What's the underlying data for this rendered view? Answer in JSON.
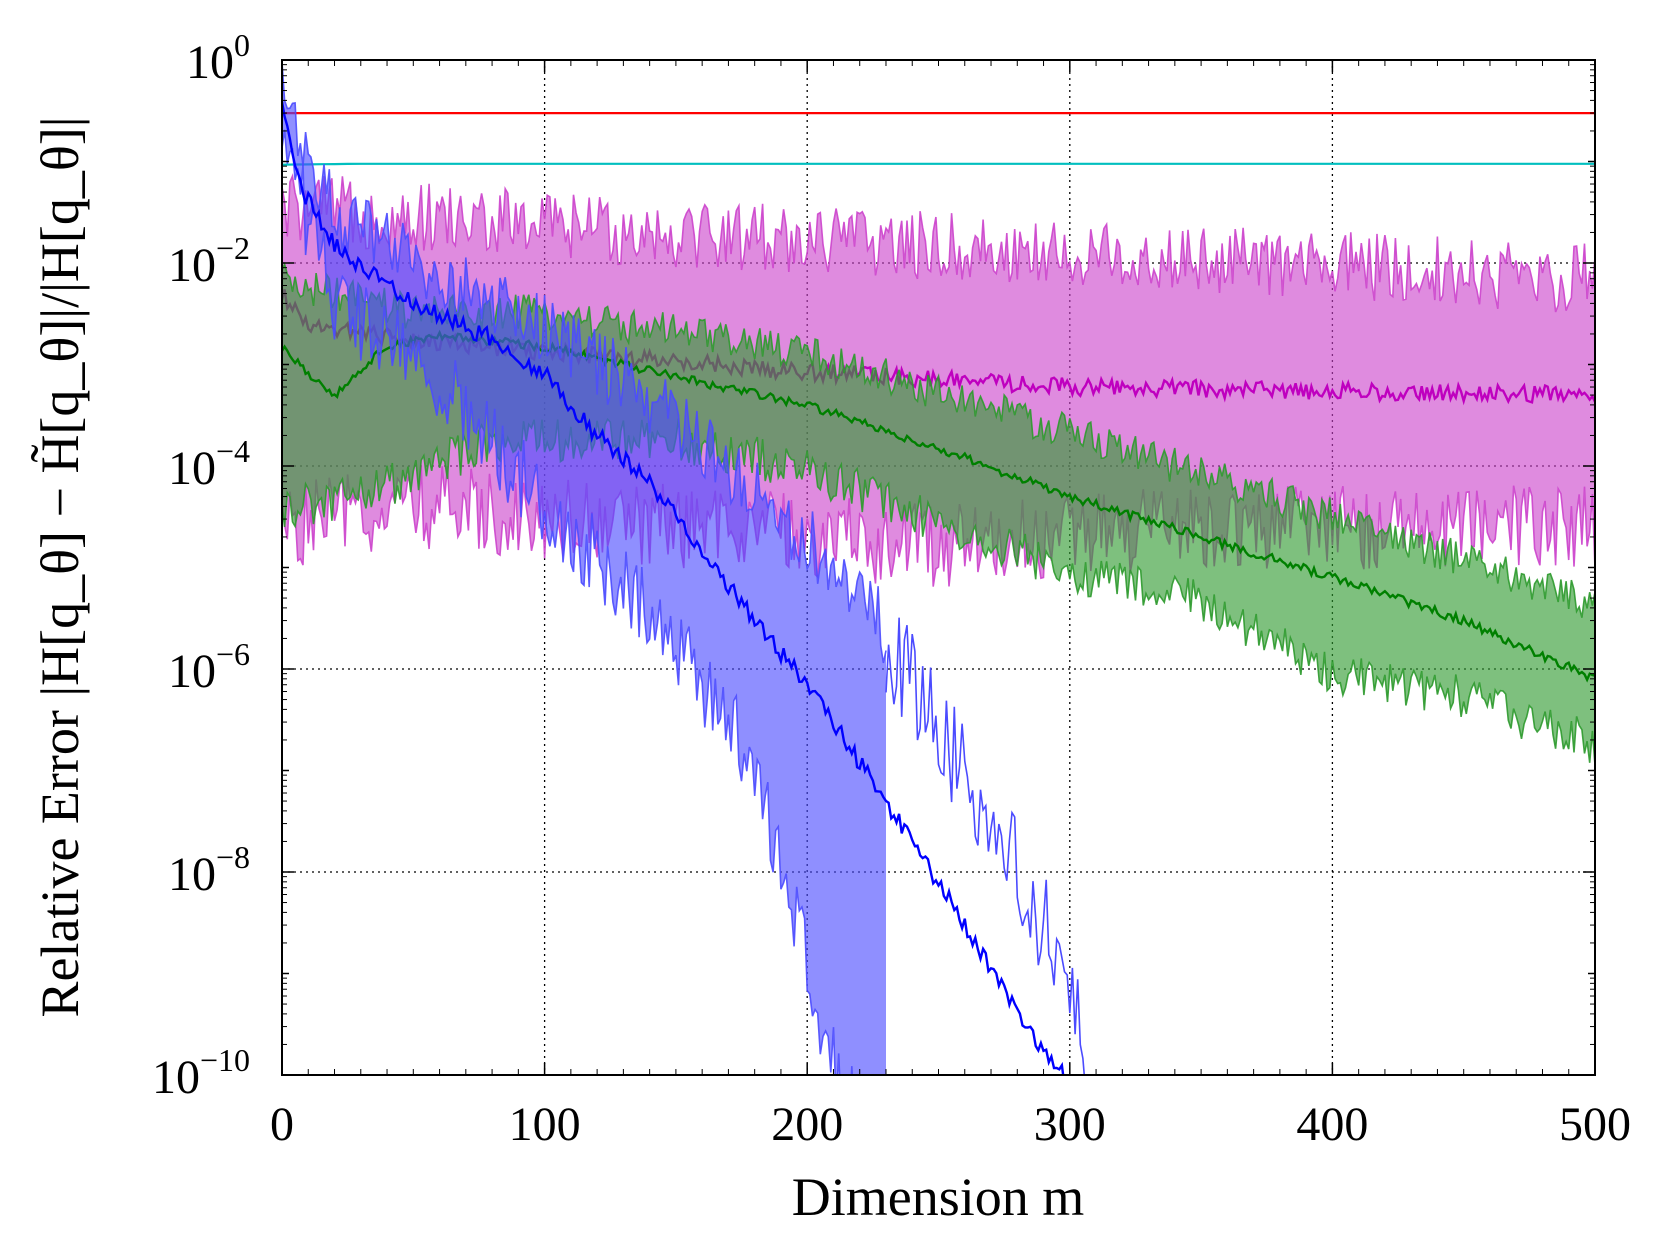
{
  "chart_data": {
    "type": "line",
    "title": "",
    "xlabel": "Dimension m",
    "ylabel": "Relative Error |H[q_θ] − H̃[q_θ]|/|H[q_θ]|",
    "xlim": [
      0,
      500
    ],
    "ylim": [
      1e-10,
      1
    ],
    "yscale": "log",
    "grid": true,
    "legend": "none",
    "x_ticks": [
      "0",
      "100",
      "200",
      "300",
      "400",
      "500"
    ],
    "y_ticks": [
      {
        "base": "10",
        "exp": "0"
      },
      {
        "base": "10",
        "exp": "−2"
      },
      {
        "base": "10",
        "exp": "−4"
      },
      {
        "base": "10",
        "exp": "−6"
      },
      {
        "base": "10",
        "exp": "−8"
      },
      {
        "base": "10",
        "exp": "−10"
      }
    ],
    "series": [
      {
        "color": "#ff0000",
        "band": false,
        "median": [
          [
            0,
            0.3
          ],
          [
            500,
            0.3
          ]
        ]
      },
      {
        "color": "#00bfbf",
        "band": false,
        "median": [
          [
            0,
            0.093
          ],
          [
            30,
            0.095
          ],
          [
            500,
            0.095
          ]
        ]
      },
      {
        "color": "#bf00bf",
        "band": true,
        "band_color": "#cc44cc",
        "noise_dex": 0.35,
        "median": [
          [
            0,
            0.005
          ],
          [
            10,
            0.0025
          ],
          [
            40,
            0.0019
          ],
          [
            80,
            0.0015
          ],
          [
            120,
            0.0012
          ],
          [
            200,
            0.00085
          ],
          [
            300,
            0.0006
          ],
          [
            400,
            0.00055
          ],
          [
            500,
            0.0005
          ]
        ],
        "lower": [
          [
            0,
            3e-05
          ],
          [
            50,
            5e-05
          ],
          [
            150,
            3e-05
          ],
          [
            250,
            2e-05
          ],
          [
            350,
            3e-05
          ],
          [
            500,
            3e-05
          ]
        ],
        "upper": [
          [
            0,
            0.03
          ],
          [
            100,
            0.02
          ],
          [
            200,
            0.015
          ],
          [
            300,
            0.01
          ],
          [
            400,
            0.008
          ],
          [
            500,
            0.006
          ]
        ]
      },
      {
        "color": "#008000",
        "band": true,
        "band_color": "#2e9a2e",
        "noise_dex": 0.18,
        "median": [
          [
            0,
            0.0015
          ],
          [
            10,
            0.0008
          ],
          [
            20,
            0.0005
          ],
          [
            30,
            0.0009
          ],
          [
            40,
            0.0015
          ],
          [
            60,
            0.0019
          ],
          [
            100,
            0.0015
          ],
          [
            150,
            0.00075
          ],
          [
            200,
            0.0004
          ],
          [
            250,
            0.00015
          ],
          [
            300,
            5e-05
          ],
          [
            350,
            2e-05
          ],
          [
            400,
            8e-06
          ],
          [
            450,
            3e-06
          ],
          [
            500,
            8e-07
          ]
        ],
        "lower": [
          [
            0,
            4e-05
          ],
          [
            40,
            7e-05
          ],
          [
            80,
            0.0002
          ],
          [
            150,
            0.0002
          ],
          [
            200,
            0.0001
          ],
          [
            300,
            1e-05
          ],
          [
            350,
            5e-06
          ],
          [
            400,
            1e-06
          ],
          [
            450,
            6e-07
          ],
          [
            500,
            2e-07
          ]
        ],
        "upper": [
          [
            0,
            0.006
          ],
          [
            50,
            0.003
          ],
          [
            100,
            0.003
          ],
          [
            200,
            0.0012
          ],
          [
            300,
            0.0002
          ],
          [
            400,
            3e-05
          ],
          [
            500,
            4e-06
          ]
        ]
      },
      {
        "color": "#0000ff",
        "band": true,
        "band_color": "#4b4bff",
        "noise_dex": 0.35,
        "median": [
          [
            0,
            0.4
          ],
          [
            2,
            0.2
          ],
          [
            5,
            0.08
          ],
          [
            10,
            0.04
          ],
          [
            20,
            0.015
          ],
          [
            40,
            0.006
          ],
          [
            60,
            0.003
          ],
          [
            80,
            0.0018
          ],
          [
            100,
            0.0008
          ],
          [
            120,
            0.0002
          ],
          [
            140,
            7e-05
          ],
          [
            160,
            1.5e-05
          ],
          [
            180,
            3e-06
          ],
          [
            200,
            7e-07
          ],
          [
            220,
            1.2e-07
          ],
          [
            240,
            2e-08
          ],
          [
            260,
            3e-09
          ],
          [
            280,
            4e-10
          ],
          [
            300,
            8e-11
          ],
          [
            310,
            1e-11
          ]
        ],
        "lower": [
          [
            0,
            0.2
          ],
          [
            20,
            0.005
          ],
          [
            60,
            0.0008
          ],
          [
            100,
            5e-05
          ],
          [
            140,
            5e-06
          ],
          [
            180,
            1.5e-07
          ],
          [
            210,
            1.5e-10
          ],
          [
            230,
            1e-11
          ]
        ],
        "upper": [
          [
            0,
            0.45
          ],
          [
            20,
            0.025
          ],
          [
            60,
            0.006
          ],
          [
            100,
            0.002
          ],
          [
            140,
            0.0004
          ],
          [
            180,
            5e-05
          ],
          [
            220,
            5e-06
          ],
          [
            260,
            1e-07
          ],
          [
            300,
            1e-09
          ],
          [
            310,
            2e-11
          ]
        ]
      }
    ]
  }
}
